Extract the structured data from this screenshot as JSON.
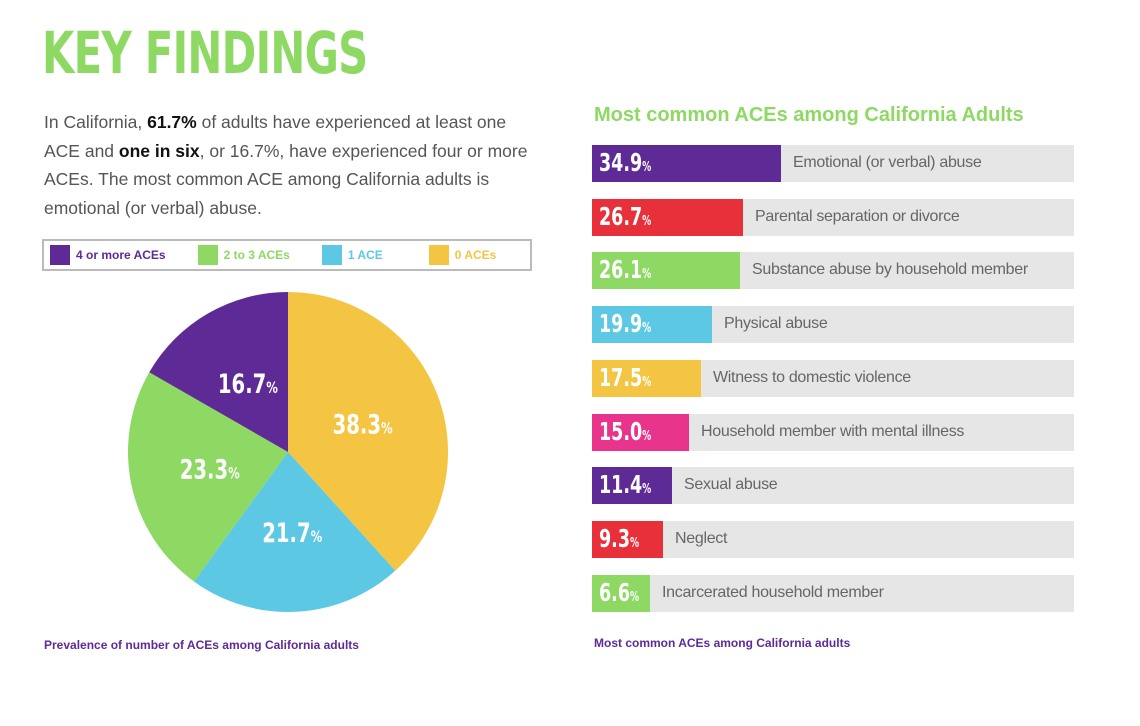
{
  "title": "KEY FINDINGS",
  "intro": {
    "p1": "In California, ",
    "b1": "61.7%",
    "p2": " of adults have experienced at least one ACE and ",
    "b2": "one in six",
    "p3": ", or 16.7%, have experienced four or more ACEs.  The most common ACE among California adults is emotional (or verbal) abuse."
  },
  "colors": {
    "purple": "#5e2a96",
    "green": "#8ed964",
    "blue": "#5cc8e4",
    "yellow": "#f4c542",
    "red": "#e8303a",
    "pink": "#e8348a"
  },
  "chart_data": [
    {
      "type": "pie",
      "caption": "Prevalence of number of ACEs among California adults",
      "legend": [
        "4 or more ACEs",
        "2 to 3 ACEs",
        "1 ACE",
        "0 ACEs"
      ],
      "slices": [
        {
          "label": "0 ACEs",
          "value": 38.3,
          "display": "38.3",
          "color": "#f4c542"
        },
        {
          "label": "1 ACE",
          "value": 21.7,
          "display": "21.7",
          "color": "#5cc8e4"
        },
        {
          "label": "2 to 3 ACEs",
          "value": 23.3,
          "display": "23.3",
          "color": "#8ed964"
        },
        {
          "label": "4 or more ACEs",
          "value": 16.7,
          "display": "16.7",
          "color": "#5e2a96"
        }
      ],
      "unit": "%"
    },
    {
      "type": "bar",
      "title": "Most common ACEs among California Adults",
      "caption": "Most common ACEs among California adults",
      "unit": "%",
      "bars": [
        {
          "label": "Emotional (or verbal) abuse",
          "value": 34.9,
          "display": "34.9",
          "color": "#5e2a96"
        },
        {
          "label": "Parental separation or divorce",
          "value": 26.7,
          "display": "26.7",
          "color": "#e8303a"
        },
        {
          "label": "Substance abuse by household member",
          "value": 26.1,
          "display": "26.1",
          "color": "#8ed964"
        },
        {
          "label": "Physical abuse",
          "value": 19.9,
          "display": "19.9",
          "color": "#5cc8e4"
        },
        {
          "label": "Witness to domestic violence",
          "value": 17.5,
          "display": "17.5",
          "color": "#f4c542"
        },
        {
          "label": "Household member with mental illness",
          "value": 15.0,
          "display": "15.0",
          "color": "#e8348a"
        },
        {
          "label": "Sexual abuse",
          "value": 11.4,
          "display": "11.4",
          "color": "#5e2a96"
        },
        {
          "label": "Neglect",
          "value": 9.3,
          "display": "9.3",
          "color": "#e8303a"
        },
        {
          "label": "Incarcerated household member",
          "value": 6.6,
          "display": "6.6",
          "color": "#8ed964"
        }
      ]
    }
  ]
}
